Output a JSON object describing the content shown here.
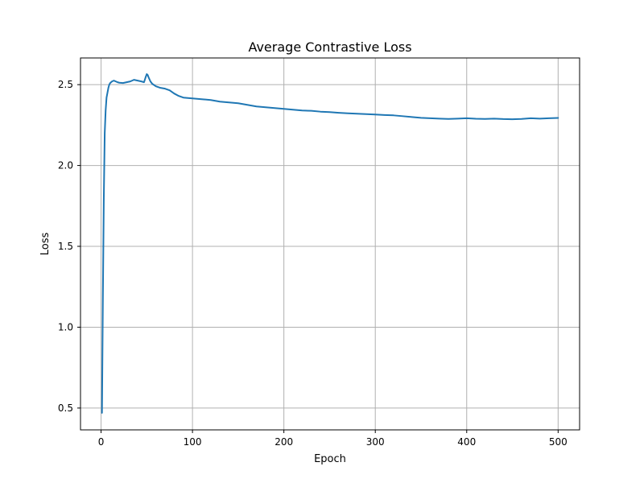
{
  "chart_data": {
    "type": "line",
    "title": "Average Contrastive Loss",
    "xlabel": "Epoch",
    "ylabel": "Loss",
    "xlim": [
      -22.5,
      523.5
    ],
    "ylim": [
      0.365,
      2.665
    ],
    "grid": true,
    "xticks": [
      0,
      100,
      200,
      300,
      400,
      500
    ],
    "xtick_labels": [
      "0",
      "100",
      "200",
      "300",
      "400",
      "500"
    ],
    "yticks": [
      0.5,
      1.0,
      1.5,
      2.0,
      2.5
    ],
    "ytick_labels": [
      "0.5",
      "1.0",
      "1.5",
      "2.0",
      "2.5"
    ],
    "series": [
      {
        "color": "#1f77b4",
        "x": [
          1,
          2,
          3,
          4,
          5,
          6,
          7,
          8,
          9,
          10,
          12,
          14,
          16,
          18,
          20,
          24,
          28,
          32,
          36,
          40,
          44,
          47,
          49,
          50,
          51,
          52,
          54,
          56,
          60,
          65,
          70,
          75,
          80,
          85,
          90,
          100,
          110,
          120,
          130,
          140,
          150,
          160,
          170,
          180,
          190,
          200,
          210,
          220,
          230,
          240,
          250,
          260,
          270,
          280,
          290,
          300,
          310,
          320,
          330,
          340,
          350,
          360,
          370,
          380,
          390,
          400,
          410,
          420,
          430,
          440,
          450,
          460,
          470,
          480,
          490,
          500
        ],
        "y": [
          0.47,
          1.2,
          1.8,
          2.2,
          2.34,
          2.42,
          2.45,
          2.48,
          2.5,
          2.51,
          2.52,
          2.525,
          2.52,
          2.515,
          2.512,
          2.51,
          2.515,
          2.52,
          2.53,
          2.525,
          2.52,
          2.515,
          2.55,
          2.565,
          2.56,
          2.545,
          2.52,
          2.505,
          2.49,
          2.48,
          2.475,
          2.465,
          2.445,
          2.43,
          2.42,
          2.415,
          2.41,
          2.405,
          2.395,
          2.39,
          2.385,
          2.375,
          2.365,
          2.36,
          2.355,
          2.35,
          2.345,
          2.34,
          2.338,
          2.333,
          2.33,
          2.326,
          2.323,
          2.32,
          2.318,
          2.315,
          2.312,
          2.31,
          2.305,
          2.3,
          2.295,
          2.292,
          2.29,
          2.288,
          2.29,
          2.292,
          2.289,
          2.288,
          2.29,
          2.287,
          2.286,
          2.288,
          2.292,
          2.29,
          2.292,
          2.294
        ]
      }
    ]
  }
}
